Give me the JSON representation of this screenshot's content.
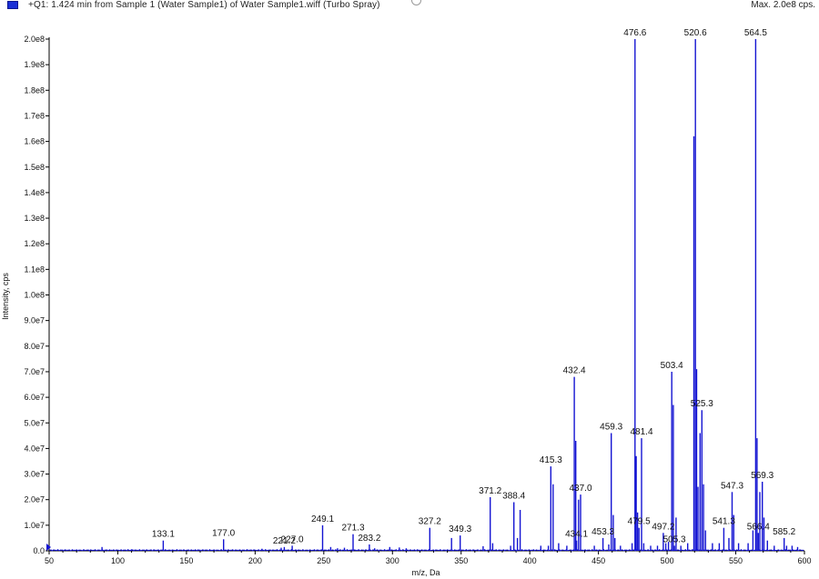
{
  "header": {
    "title": "+Q1: 1.424 min from Sample 1 (Water Sample1) of Water Sample1.wiff (Turbo Spray)",
    "max_label": "Max. 2.0e8 cps.",
    "legend_color": "#1a2fd6"
  },
  "chart_data": {
    "type": "line",
    "xlabel": "m/z, Da",
    "ylabel": "Intensity, cps",
    "xlim": [
      50,
      600
    ],
    "ylim": [
      0,
      200000000
    ],
    "x_ticks": [
      50,
      100,
      150,
      200,
      250,
      300,
      350,
      400,
      450,
      500,
      550,
      600
    ],
    "y_ticks": [
      {
        "value": 0,
        "label": "0.0"
      },
      {
        "value": 10000000,
        "label": "1.0e7"
      },
      {
        "value": 20000000,
        "label": "2.0e7"
      },
      {
        "value": 30000000,
        "label": "3.0e7"
      },
      {
        "value": 40000000,
        "label": "4.0e7"
      },
      {
        "value": 50000000,
        "label": "5.0e7"
      },
      {
        "value": 60000000,
        "label": "6.0e7"
      },
      {
        "value": 70000000,
        "label": "7.0e7"
      },
      {
        "value": 80000000,
        "label": "8.0e7"
      },
      {
        "value": 90000000,
        "label": "9.0e7"
      },
      {
        "value": 100000000,
        "label": "1.0e8"
      },
      {
        "value": 110000000,
        "label": "1.1e8"
      },
      {
        "value": 120000000,
        "label": "1.2e8"
      },
      {
        "value": 130000000,
        "label": "1.3e8"
      },
      {
        "value": 140000000,
        "label": "1.4e8"
      },
      {
        "value": 150000000,
        "label": "1.5e8"
      },
      {
        "value": 160000000,
        "label": "1.6e8"
      },
      {
        "value": 170000000,
        "label": "1.7e8"
      },
      {
        "value": 180000000,
        "label": "1.8e8"
      },
      {
        "value": 190000000,
        "label": "1.9e8"
      },
      {
        "value": 200000000,
        "label": "2.0e8"
      }
    ],
    "grid": false,
    "line_color": "#1414d2",
    "labeled_peaks": [
      {
        "mz": 133.1,
        "intensity": 4000000,
        "label": "133.1"
      },
      {
        "mz": 177.0,
        "intensity": 4500000,
        "label": "177.0"
      },
      {
        "mz": 221.2,
        "intensity": 1500000,
        "label": "221.2"
      },
      {
        "mz": 227.0,
        "intensity": 2000000,
        "label": "227.0"
      },
      {
        "mz": 249.1,
        "intensity": 10000000,
        "label": "249.1"
      },
      {
        "mz": 271.3,
        "intensity": 6500000,
        "label": "271.3"
      },
      {
        "mz": 283.2,
        "intensity": 2500000,
        "label": "283.2"
      },
      {
        "mz": 327.2,
        "intensity": 9000000,
        "label": "327.2"
      },
      {
        "mz": 349.3,
        "intensity": 6000000,
        "label": "349.3"
      },
      {
        "mz": 371.2,
        "intensity": 21000000,
        "label": "371.2"
      },
      {
        "mz": 388.4,
        "intensity": 19000000,
        "label": "388.4"
      },
      {
        "mz": 415.3,
        "intensity": 33000000,
        "label": "415.3"
      },
      {
        "mz": 432.4,
        "intensity": 68000000,
        "label": "432.4"
      },
      {
        "mz": 434.1,
        "intensity": 4000000,
        "label": "434.1"
      },
      {
        "mz": 437.0,
        "intensity": 22000000,
        "label": "437.0"
      },
      {
        "mz": 453.3,
        "intensity": 5000000,
        "label": "453.3"
      },
      {
        "mz": 459.3,
        "intensity": 46000000,
        "label": "459.3"
      },
      {
        "mz": 476.6,
        "intensity": 200000000,
        "label": "476.6"
      },
      {
        "mz": 479.5,
        "intensity": 9000000,
        "label": "479.5"
      },
      {
        "mz": 481.4,
        "intensity": 44000000,
        "label": "481.4"
      },
      {
        "mz": 497.2,
        "intensity": 7000000,
        "label": "497.2"
      },
      {
        "mz": 503.4,
        "intensity": 70000000,
        "label": "503.4"
      },
      {
        "mz": 505.3,
        "intensity": 2000000,
        "label": "505.3"
      },
      {
        "mz": 520.6,
        "intensity": 200000000,
        "label": "520.6"
      },
      {
        "mz": 525.3,
        "intensity": 55000000,
        "label": "525.3"
      },
      {
        "mz": 541.3,
        "intensity": 9000000,
        "label": "541.3"
      },
      {
        "mz": 547.3,
        "intensity": 23000000,
        "label": "547.3"
      },
      {
        "mz": 564.5,
        "intensity": 200000000,
        "label": "564.5"
      },
      {
        "mz": 566.4,
        "intensity": 7000000,
        "label": "566.4"
      },
      {
        "mz": 569.3,
        "intensity": 27000000,
        "label": "569.3"
      },
      {
        "mz": 585.2,
        "intensity": 5000000,
        "label": "585.2"
      }
    ],
    "minor_peaks": [
      {
        "mz": 88.5,
        "intensity": 1500000
      },
      {
        "mz": 110.0,
        "intensity": 600000
      },
      {
        "mz": 205.0,
        "intensity": 800000
      },
      {
        "mz": 219.0,
        "intensity": 1200000
      },
      {
        "mz": 255.0,
        "intensity": 1500000
      },
      {
        "mz": 260.0,
        "intensity": 1000000
      },
      {
        "mz": 265.0,
        "intensity": 1200000
      },
      {
        "mz": 287.0,
        "intensity": 1000000
      },
      {
        "mz": 298.0,
        "intensity": 1500000
      },
      {
        "mz": 305.0,
        "intensity": 1300000
      },
      {
        "mz": 310.0,
        "intensity": 1000000
      },
      {
        "mz": 343.0,
        "intensity": 5000000
      },
      {
        "mz": 366.0,
        "intensity": 1800000
      },
      {
        "mz": 373.0,
        "intensity": 3000000
      },
      {
        "mz": 386.0,
        "intensity": 2000000
      },
      {
        "mz": 391.0,
        "intensity": 5000000
      },
      {
        "mz": 393.0,
        "intensity": 16000000
      },
      {
        "mz": 408.0,
        "intensity": 2000000
      },
      {
        "mz": 413.5,
        "intensity": 2000000
      },
      {
        "mz": 417.0,
        "intensity": 26000000
      },
      {
        "mz": 421.0,
        "intensity": 3000000
      },
      {
        "mz": 427.0,
        "intensity": 2000000
      },
      {
        "mz": 433.5,
        "intensity": 43000000
      },
      {
        "mz": 435.5,
        "intensity": 20000000
      },
      {
        "mz": 447.0,
        "intensity": 2000000
      },
      {
        "mz": 457.5,
        "intensity": 2500000
      },
      {
        "mz": 460.8,
        "intensity": 14000000
      },
      {
        "mz": 462.0,
        "intensity": 5000000
      },
      {
        "mz": 466.0,
        "intensity": 2000000
      },
      {
        "mz": 474.5,
        "intensity": 3000000
      },
      {
        "mz": 477.5,
        "intensity": 37000000
      },
      {
        "mz": 478.5,
        "intensity": 15000000
      },
      {
        "mz": 483.0,
        "intensity": 3000000
      },
      {
        "mz": 488.0,
        "intensity": 2000000
      },
      {
        "mz": 493.0,
        "intensity": 2000000
      },
      {
        "mz": 499.0,
        "intensity": 3000000
      },
      {
        "mz": 501.0,
        "intensity": 3500000
      },
      {
        "mz": 504.5,
        "intensity": 57000000
      },
      {
        "mz": 506.5,
        "intensity": 13000000
      },
      {
        "mz": 510.0,
        "intensity": 2000000
      },
      {
        "mz": 515.0,
        "intensity": 3000000
      },
      {
        "mz": 519.5,
        "intensity": 162000000
      },
      {
        "mz": 521.5,
        "intensity": 71000000
      },
      {
        "mz": 522.5,
        "intensity": 25000000
      },
      {
        "mz": 524.0,
        "intensity": 46000000
      },
      {
        "mz": 526.5,
        "intensity": 26000000
      },
      {
        "mz": 528.0,
        "intensity": 8000000
      },
      {
        "mz": 533.0,
        "intensity": 3000000
      },
      {
        "mz": 538.0,
        "intensity": 3000000
      },
      {
        "mz": 545.0,
        "intensity": 5000000
      },
      {
        "mz": 548.5,
        "intensity": 14000000
      },
      {
        "mz": 552.0,
        "intensity": 3000000
      },
      {
        "mz": 559.0,
        "intensity": 3000000
      },
      {
        "mz": 562.5,
        "intensity": 8000000
      },
      {
        "mz": 565.5,
        "intensity": 44000000
      },
      {
        "mz": 567.5,
        "intensity": 23000000
      },
      {
        "mz": 570.5,
        "intensity": 13000000
      },
      {
        "mz": 573.0,
        "intensity": 4000000
      },
      {
        "mz": 578.0,
        "intensity": 2000000
      },
      {
        "mz": 587.0,
        "intensity": 2000000
      },
      {
        "mz": 591.0,
        "intensity": 2000000
      },
      {
        "mz": 595.0,
        "intensity": 1500000
      }
    ]
  }
}
